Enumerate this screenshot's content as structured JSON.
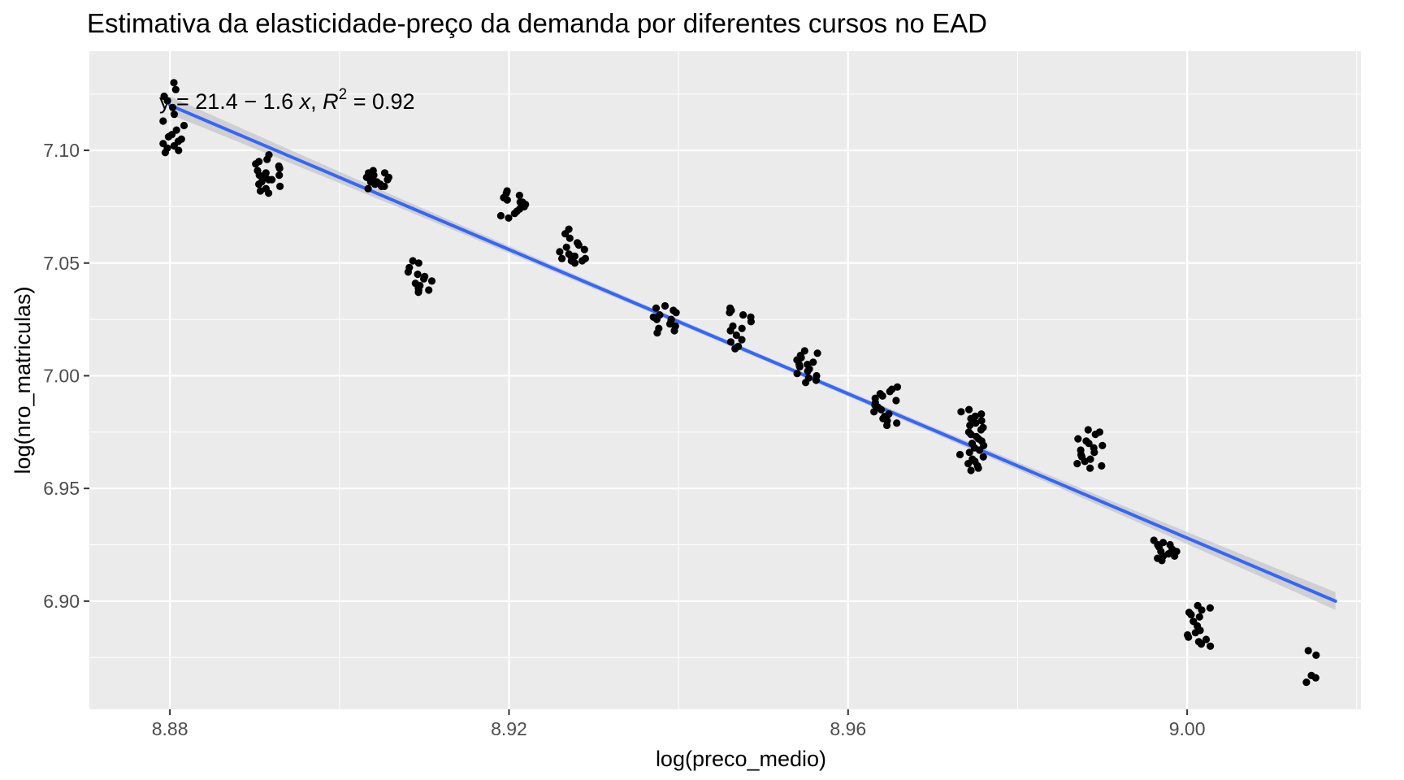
{
  "chart_data": {
    "type": "scatter",
    "title": "Estimativa da elasticidade-preço da demanda por diferentes cursos no EAD",
    "xlabel": "log(preco_medio)",
    "ylabel": "log(nro_matriculas)",
    "xlim": [
      8.8705,
      9.0205
    ],
    "ylim": [
      6.852,
      7.144
    ],
    "x_ticks": [
      8.88,
      8.92,
      8.96,
      9.0
    ],
    "x_tick_labels": [
      "8.88",
      "8.92",
      "8.96",
      "9.00"
    ],
    "y_ticks": [
      6.9,
      6.95,
      7.0,
      7.05,
      7.1
    ],
    "y_tick_labels": [
      "6.90",
      "6.95",
      "7.00",
      "7.05",
      "7.10"
    ],
    "grid": true,
    "background": "#ebebeb",
    "grid_color": "#ffffff",
    "point_color": "#000000",
    "fit": {
      "method": "linear",
      "intercept": 21.4,
      "slope": -1.6,
      "r2": 0.92,
      "x_range": [
        8.88,
        9.0175
      ],
      "y_at_start": 7.12,
      "y_at_end": 6.9,
      "line_color": "#3366ff",
      "band_color": "#bdbdbd"
    },
    "annotation": {
      "text_prefix": "ŷ = 21.4 − 1.6 ",
      "x_var": "x",
      "r2_sep": ", ",
      "r2_letter": "R",
      "r2_exp": "2",
      "r2_value": " = 0.92"
    },
    "clusters": [
      {
        "x": 8.8805,
        "y_values": [
          7.13,
          7.127,
          7.124,
          7.122,
          7.119,
          7.116,
          7.113,
          7.111,
          7.109,
          7.107,
          7.106,
          7.105,
          7.104,
          7.103,
          7.102,
          7.101,
          7.1,
          7.099
        ]
      },
      {
        "x": 8.8915,
        "y_values": [
          7.098,
          7.096,
          7.095,
          7.094,
          7.093,
          7.092,
          7.091,
          7.09,
          7.089,
          7.089,
          7.088,
          7.087,
          7.087,
          7.086,
          7.085,
          7.084,
          7.083,
          7.082,
          7.081
        ]
      },
      {
        "x": 8.9045,
        "y_values": [
          7.091,
          7.09,
          7.09,
          7.089,
          7.089,
          7.088,
          7.088,
          7.087,
          7.087,
          7.086,
          7.086,
          7.085,
          7.085,
          7.084,
          7.084,
          7.083
        ]
      },
      {
        "x": 8.9095,
        "y_values": [
          7.051,
          7.05,
          7.048,
          7.046,
          7.045,
          7.044,
          7.043,
          7.042,
          7.041,
          7.04,
          7.04,
          7.039,
          7.038,
          7.038,
          7.037
        ]
      },
      {
        "x": 8.9205,
        "y_values": [
          7.082,
          7.081,
          7.08,
          7.079,
          7.078,
          7.077,
          7.077,
          7.076,
          7.075,
          7.075,
          7.074,
          7.073,
          7.072,
          7.071,
          7.07
        ]
      },
      {
        "x": 8.9275,
        "y_values": [
          7.065,
          7.063,
          7.061,
          7.059,
          7.058,
          7.057,
          7.056,
          7.055,
          7.054,
          7.053,
          7.053,
          7.052,
          7.052,
          7.051,
          7.051,
          7.05
        ]
      },
      {
        "x": 8.9385,
        "y_values": [
          7.031,
          7.03,
          7.029,
          7.028,
          7.027,
          7.026,
          7.025,
          7.025,
          7.024,
          7.023,
          7.022,
          7.021,
          7.02,
          7.019
        ]
      },
      {
        "x": 8.9475,
        "y_values": [
          7.03,
          7.029,
          7.028,
          7.027,
          7.026,
          7.024,
          7.022,
          7.021,
          7.02,
          7.018,
          7.016,
          7.015,
          7.013,
          7.012
        ]
      },
      {
        "x": 8.9555,
        "y_values": [
          7.011,
          7.01,
          7.009,
          7.008,
          7.007,
          7.006,
          7.005,
          7.005,
          7.004,
          7.003,
          7.002,
          7.001,
          7.0,
          6.999,
          6.998,
          6.997
        ]
      },
      {
        "x": 8.9645,
        "y_values": [
          6.995,
          6.994,
          6.993,
          6.992,
          6.991,
          6.99,
          6.989,
          6.988,
          6.987,
          6.986,
          6.985,
          6.984,
          6.983,
          6.982,
          6.981,
          6.98,
          6.979,
          6.978
        ]
      },
      {
        "x": 8.9745,
        "y_values": [
          6.985,
          6.984,
          6.983,
          6.982,
          6.981,
          6.98,
          6.979,
          6.978,
          6.977,
          6.976,
          6.975,
          6.974,
          6.973,
          6.972,
          6.971,
          6.97,
          6.969,
          6.968,
          6.967,
          6.966,
          6.965,
          6.964,
          6.963,
          6.962,
          6.961,
          6.96,
          6.959,
          6.958
        ]
      },
      {
        "x": 8.9885,
        "y_values": [
          6.976,
          6.975,
          6.974,
          6.972,
          6.971,
          6.97,
          6.969,
          6.968,
          6.967,
          6.966,
          6.965,
          6.964,
          6.963,
          6.962,
          6.961,
          6.96,
          6.959
        ]
      },
      {
        "x": 8.9975,
        "y_values": [
          6.927,
          6.926,
          6.925,
          6.925,
          6.924,
          6.923,
          6.922,
          6.922,
          6.921,
          6.92,
          6.92,
          6.919,
          6.918
        ]
      },
      {
        "x": 9.0015,
        "y_values": [
          6.898,
          6.897,
          6.896,
          6.895,
          6.894,
          6.893,
          6.891,
          6.889,
          6.887,
          6.886,
          6.885,
          6.884,
          6.883,
          6.882,
          6.881,
          6.88
        ]
      },
      {
        "x": 9.0155,
        "y_values": [
          6.878,
          6.876,
          6.867,
          6.866,
          6.864
        ]
      }
    ]
  }
}
